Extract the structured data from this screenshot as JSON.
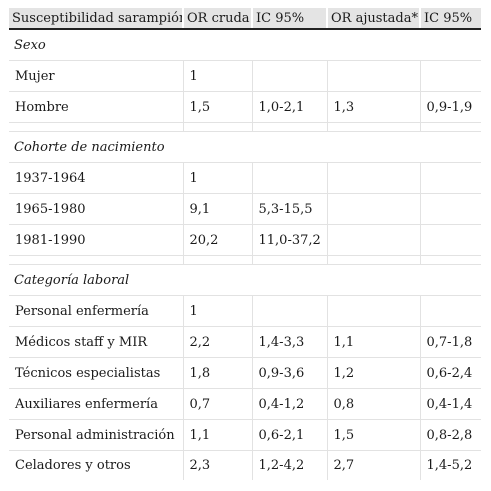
{
  "table": {
    "headers": [
      "Susceptibilidad sarampión",
      "OR cruda",
      "IC 95%",
      "OR ajustada*",
      "IC 95%"
    ],
    "sections": [
      {
        "title": "Sexo",
        "rows": [
          [
            "Mujer",
            "1",
            "",
            "",
            ""
          ],
          [
            "Hombre",
            "1,5",
            "1,0-2,1",
            "1,3",
            "0,9-1,9"
          ]
        ]
      },
      {
        "title": "Cohorte de nacimiento",
        "rows": [
          [
            "1937-1964",
            "1",
            "",
            "",
            ""
          ],
          [
            "1965-1980",
            "9,1",
            "5,3-15,5",
            "",
            ""
          ],
          [
            "1981-1990",
            "20,2",
            "11,0-37,2",
            "",
            ""
          ]
        ]
      },
      {
        "title": "Categoría laboral",
        "rows": [
          [
            "Personal enfermería",
            "1",
            "",
            "",
            ""
          ],
          [
            "Médicos staff y MIR",
            "2,2",
            "1,4-3,3",
            "1,1",
            "0,7-1,8"
          ],
          [
            "Técnicos especialistas",
            "1,8",
            "0,9-3,6",
            "1,2",
            "0,6-2,4"
          ],
          [
            "Auxiliares enfermería",
            "0,7",
            "0,4-1,2",
            "0,8",
            "0,4-1,4"
          ],
          [
            "Personal administración",
            "1,1",
            "0,6-2,1",
            "1,5",
            "0,8-2,8"
          ],
          [
            "Celadores y otros",
            "2,3",
            "1,2-4,2",
            "2,7",
            "1,4-5,2"
          ]
        ]
      }
    ]
  }
}
